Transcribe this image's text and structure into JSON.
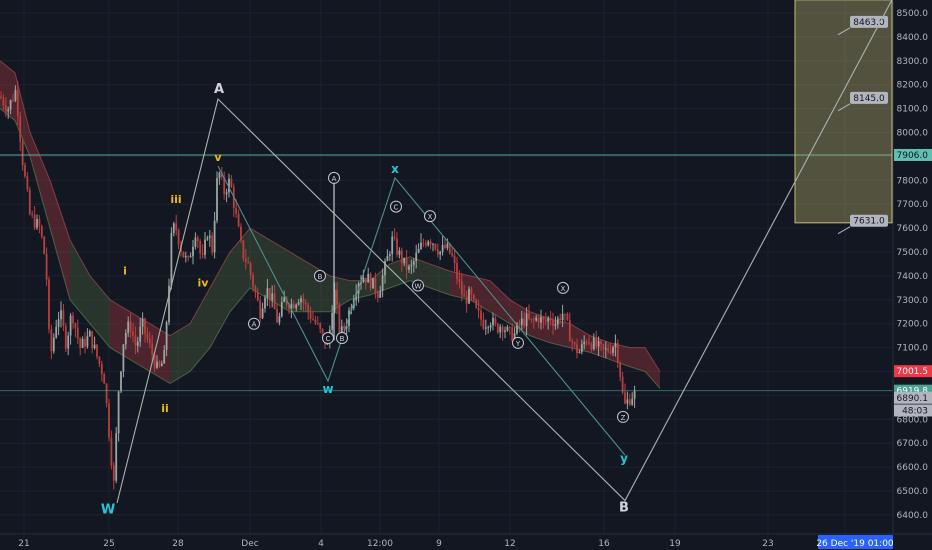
{
  "chart_data": {
    "type": "line",
    "subtype": "candlestick-with-annotations",
    "ylim": [
      6375,
      8555
    ],
    "y_ticks": [
      8500,
      8400,
      8300,
      8200,
      8100,
      8000,
      7900,
      7800,
      7700,
      7600,
      7500,
      7400,
      7300,
      7200,
      7100,
      7000,
      6900,
      6800,
      6700,
      6600,
      6500,
      6400
    ],
    "x_ticks": [
      "21",
      "25",
      "28",
      "Dec",
      "4",
      "12:00",
      "9",
      "12",
      "16",
      "19",
      "23",
      "26"
    ],
    "grid": true,
    "price_path": [
      [
        0,
        8150
      ],
      [
        8,
        8100
      ],
      [
        16,
        8180
      ],
      [
        22,
        7900
      ],
      [
        30,
        7650
      ],
      [
        40,
        7600
      ],
      [
        46,
        7450
      ],
      [
        50,
        7050
      ],
      [
        56,
        7200
      ],
      [
        60,
        7250
      ],
      [
        66,
        7120
      ],
      [
        72,
        7250
      ],
      [
        80,
        7100
      ],
      [
        90,
        7150
      ],
      [
        98,
        7050
      ],
      [
        104,
        6980
      ],
      [
        110,
        6700
      ],
      [
        114,
        6520
      ],
      [
        118,
        6900
      ],
      [
        124,
        7150
      ],
      [
        130,
        7200
      ],
      [
        136,
        7100
      ],
      [
        142,
        7200
      ],
      [
        150,
        7100
      ],
      [
        158,
        7000
      ],
      [
        164,
        7050
      ],
      [
        168,
        7300
      ],
      [
        172,
        7600
      ],
      [
        176,
        7600
      ],
      [
        182,
        7500
      ],
      [
        188,
        7450
      ],
      [
        196,
        7600
      ],
      [
        202,
        7450
      ],
      [
        208,
        7600
      ],
      [
        212,
        7500
      ],
      [
        218,
        7850
      ],
      [
        224,
        7750
      ],
      [
        230,
        7800
      ],
      [
        236,
        7650
      ],
      [
        242,
        7500
      ],
      [
        248,
        7450
      ],
      [
        254,
        7350
      ],
      [
        260,
        7250
      ],
      [
        266,
        7350
      ],
      [
        272,
        7300
      ],
      [
        278,
        7200
      ],
      [
        284,
        7300
      ],
      [
        292,
        7280
      ],
      [
        300,
        7320
      ],
      [
        308,
        7250
      ],
      [
        316,
        7200
      ],
      [
        322,
        7150
      ],
      [
        328,
        7100
      ],
      [
        334,
        7350
      ],
      [
        340,
        7150
      ],
      [
        346,
        7200
      ],
      [
        352,
        7300
      ],
      [
        358,
        7380
      ],
      [
        364,
        7400
      ],
      [
        370,
        7380
      ],
      [
        378,
        7330
      ],
      [
        386,
        7450
      ],
      [
        392,
        7550
      ],
      [
        398,
        7500
      ],
      [
        404,
        7450
      ],
      [
        410,
        7420
      ],
      [
        416,
        7480
      ],
      [
        422,
        7530
      ],
      [
        428,
        7560
      ],
      [
        434,
        7540
      ],
      [
        440,
        7500
      ],
      [
        446,
        7520
      ],
      [
        452,
        7480
      ],
      [
        458,
        7380
      ],
      [
        464,
        7300
      ],
      [
        470,
        7320
      ],
      [
        476,
        7250
      ],
      [
        484,
        7200
      ],
      [
        490,
        7220
      ],
      [
        496,
        7180
      ],
      [
        502,
        7200
      ],
      [
        508,
        7160
      ],
      [
        514,
        7150
      ],
      [
        520,
        7200
      ],
      [
        526,
        7220
      ],
      [
        532,
        7200
      ],
      [
        538,
        7230
      ],
      [
        544,
        7200
      ],
      [
        550,
        7230
      ],
      [
        556,
        7200
      ],
      [
        562,
        7250
      ],
      [
        568,
        7180
      ],
      [
        574,
        7100
      ],
      [
        580,
        7080
      ],
      [
        586,
        7140
      ],
      [
        592,
        7120
      ],
      [
        598,
        7100
      ],
      [
        604,
        7080
      ],
      [
        610,
        7100
      ],
      [
        616,
        7120
      ],
      [
        620,
        7000
      ],
      [
        624,
        6850
      ],
      [
        628,
        6880
      ],
      [
        632,
        6900
      ],
      [
        636,
        6910
      ]
    ],
    "cloud_top": [
      [
        0,
        8300
      ],
      [
        15,
        8250
      ],
      [
        30,
        8000
      ],
      [
        50,
        7800
      ],
      [
        70,
        7550
      ],
      [
        90,
        7400
      ],
      [
        110,
        7300
      ],
      [
        130,
        7250
      ],
      [
        150,
        7200
      ],
      [
        170,
        7150
      ],
      [
        190,
        7200
      ],
      [
        210,
        7350
      ],
      [
        230,
        7500
      ],
      [
        250,
        7600
      ],
      [
        270,
        7550
      ],
      [
        290,
        7500
      ],
      [
        310,
        7450
      ],
      [
        330,
        7400
      ],
      [
        350,
        7380
      ],
      [
        370,
        7380
      ],
      [
        390,
        7450
      ],
      [
        410,
        7480
      ],
      [
        430,
        7450
      ],
      [
        450,
        7420
      ],
      [
        470,
        7400
      ],
      [
        490,
        7380
      ],
      [
        510,
        7300
      ],
      [
        530,
        7250
      ],
      [
        550,
        7220
      ],
      [
        570,
        7200
      ],
      [
        590,
        7150
      ],
      [
        610,
        7120
      ],
      [
        630,
        7100
      ],
      [
        645,
        7100
      ],
      [
        660,
        7000
      ]
    ],
    "cloud_bottom": [
      [
        0,
        8100
      ],
      [
        15,
        8050
      ],
      [
        30,
        7900
      ],
      [
        50,
        7600
      ],
      [
        70,
        7300
      ],
      [
        90,
        7200
      ],
      [
        110,
        7100
      ],
      [
        130,
        7050
      ],
      [
        150,
        7000
      ],
      [
        170,
        6950
      ],
      [
        190,
        7000
      ],
      [
        210,
        7100
      ],
      [
        230,
        7250
      ],
      [
        250,
        7350
      ],
      [
        270,
        7300
      ],
      [
        290,
        7250
      ],
      [
        310,
        7250
      ],
      [
        330,
        7250
      ],
      [
        350,
        7300
      ],
      [
        370,
        7320
      ],
      [
        390,
        7350
      ],
      [
        410,
        7380
      ],
      [
        430,
        7350
      ],
      [
        450,
        7320
      ],
      [
        470,
        7300
      ],
      [
        490,
        7250
      ],
      [
        510,
        7200
      ],
      [
        530,
        7150
      ],
      [
        550,
        7120
      ],
      [
        570,
        7100
      ],
      [
        590,
        7080
      ],
      [
        610,
        7050
      ],
      [
        630,
        7020
      ],
      [
        645,
        7000
      ],
      [
        660,
        6930
      ]
    ],
    "series": [
      {
        "name": "W-A-B",
        "points": [
          [
            117,
            6450
          ],
          [
            218,
            8140
          ],
          [
            625,
            6460
          ],
          [
            892,
            8555
          ]
        ]
      },
      {
        "name": "w-x-y",
        "points": [
          [
            218,
            7860
          ],
          [
            328,
            6960
          ],
          [
            395,
            7810
          ],
          [
            625,
            6650
          ]
        ]
      },
      {
        "name": "A-B-C",
        "points": [
          [
            334,
            7790
          ],
          [
            334,
            7310
          ],
          [
            334,
            7130
          ]
        ]
      }
    ],
    "horizontal_lines": [
      7906.0,
      6919.8
    ],
    "target_box": {
      "x_range": [
        795,
        892
      ],
      "price_range": [
        7622,
        8555
      ]
    },
    "target_labels": [
      {
        "text": "8463.0",
        "price": 8463,
        "x": 850
      },
      {
        "text": "8145.0",
        "price": 8145,
        "x": 850
      },
      {
        "text": "7631.0",
        "price": 7631,
        "x": 850
      }
    ],
    "price_tags": [
      {
        "text": "7906.0",
        "price": 7906,
        "color": "#5fbfb0"
      },
      {
        "text": "7001.5",
        "price": 7001.5,
        "color": "#f23645"
      },
      {
        "text": "6919.8",
        "price": 6919.8,
        "color": "#4aa393"
      },
      {
        "text": "6890.1",
        "price": 6890.1,
        "color": "#b2b5be"
      },
      {
        "text": "48:03",
        "price": 6837,
        "color": "#b2b5be"
      }
    ],
    "wave_labels": [
      {
        "text": "W",
        "x": 108,
        "price": 6405,
        "color": "#26c6da",
        "size": 13
      },
      {
        "text": "A",
        "x": 219,
        "price": 8165,
        "color": "#d1d4dc",
        "size": 13
      },
      {
        "text": "B",
        "x": 624,
        "price": 6415,
        "color": "#d1d4dc",
        "size": 13
      },
      {
        "text": "w",
        "x": 328,
        "price": 6910,
        "color": "#26c6da",
        "size": 12
      },
      {
        "text": "x",
        "x": 395,
        "price": 7830,
        "color": "#26c6da",
        "size": 12
      },
      {
        "text": "y",
        "x": 624,
        "price": 6620,
        "color": "#26c6da",
        "size": 12
      },
      {
        "text": "i",
        "x": 125,
        "price": 7405,
        "color": "#f0b90b",
        "size": 11
      },
      {
        "text": "ii",
        "x": 165,
        "price": 6830,
        "color": "#f0b90b",
        "size": 11
      },
      {
        "text": "iii",
        "x": 176,
        "price": 7705,
        "color": "#f0b90b",
        "size": 11
      },
      {
        "text": "iv",
        "x": 203,
        "price": 7355,
        "color": "#f0b90b",
        "size": 11
      },
      {
        "text": "v",
        "x": 218,
        "price": 7880,
        "color": "#f0b90b",
        "size": 11
      }
    ],
    "circle_labels": [
      {
        "text": "A",
        "x": 334,
        "price": 7810
      },
      {
        "text": "B",
        "x": 320,
        "price": 7400
      },
      {
        "text": "A",
        "x": 254,
        "price": 7200
      },
      {
        "text": "C",
        "x": 328,
        "price": 7140
      },
      {
        "text": "B",
        "x": 342,
        "price": 7140
      },
      {
        "text": "C",
        "x": 396,
        "price": 7690
      },
      {
        "text": "X",
        "x": 430,
        "price": 7650
      },
      {
        "text": "W",
        "x": 418,
        "price": 7360
      },
      {
        "text": "X",
        "x": 563,
        "price": 7350
      },
      {
        "text": "Y",
        "x": 518,
        "price": 7120
      },
      {
        "text": "Z",
        "x": 623,
        "price": 6810
      }
    ],
    "date_tag": "26 Dec '19   01:00"
  }
}
